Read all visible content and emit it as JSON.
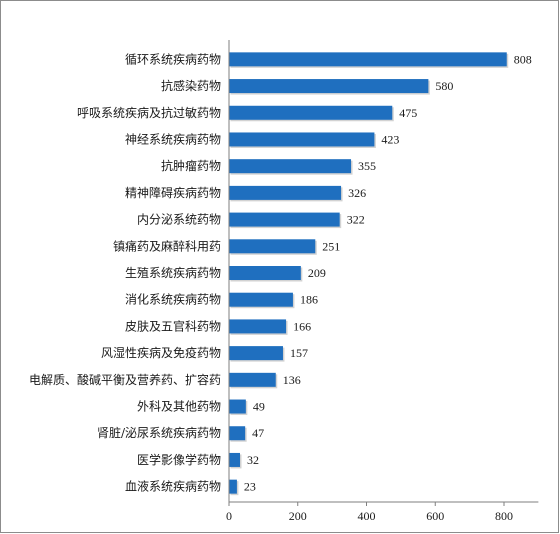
{
  "chart_data": {
    "type": "bar",
    "orientation": "horizontal",
    "title": "",
    "xlabel": "",
    "ylabel": "",
    "categories": [
      "循环系统疾病药物",
      "抗感染药物",
      "呼吸系统疾病及抗过敏药物",
      "神经系统疾病药物",
      "抗肿瘤药物",
      "精神障碍疾病药物",
      "内分泌系统药物",
      "镇痛药及麻醉科用药",
      "生殖系统疾病药物",
      "消化系统疾病药物",
      "皮肤及五官科药物",
      "风湿性疾病及免疫药物",
      "电解质、酸碱平衡及营养药、扩容药",
      "外科及其他药物",
      "肾脏/泌尿系统疾病药物",
      "医学影像学药物",
      "血液系统疾病药物"
    ],
    "values": [
      808,
      580,
      475,
      423,
      355,
      326,
      322,
      251,
      209,
      186,
      166,
      157,
      136,
      49,
      47,
      32,
      23
    ],
    "xlim": [
      0,
      900
    ],
    "xticks": [
      0,
      200,
      400,
      600,
      800
    ],
    "grid": false,
    "legend": "none",
    "bar_color": "#1f6fbf",
    "axis_color": "#7f7f7f",
    "frame_color": "#8c8c8c"
  }
}
